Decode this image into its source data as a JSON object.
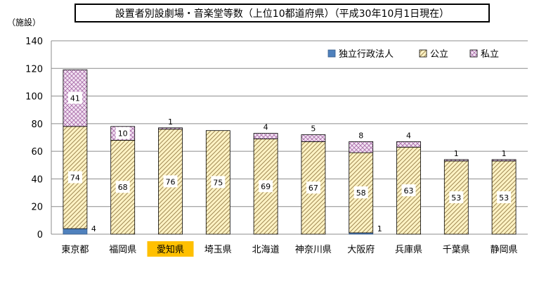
{
  "chart_data": {
    "type": "bar",
    "stacked": true,
    "title": "設置者別設劇場・音楽堂等数（上位10都道府県）（平成30年10月1日現在）",
    "ylabel": "（施設）",
    "ylim": [
      0,
      140
    ],
    "ytick_step": 20,
    "yticks": [
      "0",
      "20",
      "40",
      "60",
      "80",
      "100",
      "120",
      "140"
    ],
    "grid": true,
    "legend_position": "top-right",
    "categories": [
      "東京都",
      "福岡県",
      "愛知県",
      "埼玉県",
      "北海道",
      "神奈川県",
      "大阪府",
      "兵庫県",
      "千葉県",
      "静岡県"
    ],
    "highlighted_category": "愛知県",
    "series": [
      {
        "name": "独立行政法人",
        "values": [
          4,
          0,
          0,
          0,
          0,
          0,
          1,
          0,
          0,
          0
        ]
      },
      {
        "name": "公立",
        "values": [
          74,
          68,
          76,
          75,
          69,
          67,
          58,
          63,
          53,
          53
        ]
      },
      {
        "name": "私立",
        "values": [
          41,
          10,
          1,
          0,
          4,
          5,
          8,
          4,
          1,
          1
        ]
      }
    ],
    "colors": {
      "独立行政法人": "#4f81bd",
      "公立_base": "#fff3c4",
      "公立_hatch": "#a08a56",
      "私立_base": "#f3e4f3",
      "私立_hatch": "#a86aa8",
      "highlight": "#ffc000",
      "grid": "#8c8c8c"
    }
  }
}
